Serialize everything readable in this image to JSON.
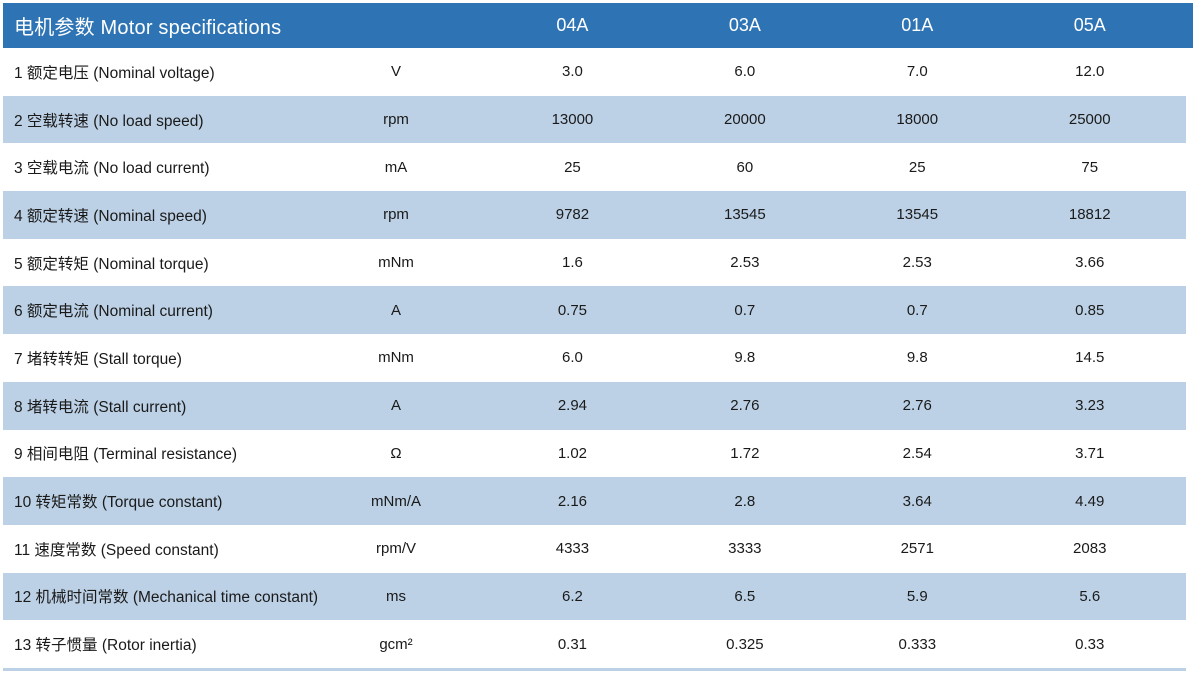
{
  "title": "电机参数 Motor specifications",
  "column_headers": [
    "04A",
    "03A",
    "01A",
    "05A"
  ],
  "rows": [
    {
      "label": "1 额定电压 (Nominal voltage)",
      "unit": "V",
      "values": [
        "3.0",
        "6.0",
        "7.0",
        "12.0"
      ]
    },
    {
      "label": "2 空载转速 (No load speed)",
      "unit": "rpm",
      "values": [
        "13000",
        "20000",
        "18000",
        "25000"
      ]
    },
    {
      "label": "3 空载电流 (No load current)",
      "unit": "mA",
      "values": [
        "25",
        "60",
        "25",
        "75"
      ]
    },
    {
      "label": "4 额定转速 (Nominal speed)",
      "unit": "rpm",
      "values": [
        "9782",
        "13545",
        "13545",
        "18812"
      ]
    },
    {
      "label": "5 额定转矩 (Nominal torque)",
      "unit": "mNm",
      "values": [
        "1.6",
        "2.53",
        "2.53",
        "3.66"
      ]
    },
    {
      "label": "6 额定电流 (Nominal current)",
      "unit": "A",
      "values": [
        "0.75",
        "0.7",
        "0.7",
        "0.85"
      ]
    },
    {
      "label": "7 堵转转矩 (Stall torque)",
      "unit": "mNm",
      "values": [
        "6.0",
        "9.8",
        "9.8",
        "14.5"
      ]
    },
    {
      "label": "8 堵转电流 (Stall current)",
      "unit": "A",
      "values": [
        "2.94",
        "2.76",
        "2.76",
        "3.23"
      ]
    },
    {
      "label": "9 相间电阻 (Terminal resistance)",
      "unit": "Ω",
      "values": [
        "1.02",
        "1.72",
        "2.54",
        "3.71"
      ]
    },
    {
      "label": "10 转矩常数 (Torque constant)",
      "unit": "mNm/A",
      "values": [
        "2.16",
        "2.8",
        "3.64",
        "4.49"
      ]
    },
    {
      "label": "11 速度常数 (Speed constant)",
      "unit": "rpm/V",
      "values": [
        "4333",
        "3333",
        "2571",
        "2083"
      ]
    },
    {
      "label": "12 机械时间常数 (Mechanical time constant)",
      "unit": "ms",
      "values": [
        "6.2",
        "6.5",
        "5.9",
        "5.6"
      ]
    },
    {
      "label": "13 转子惯量 (Rotor inertia)",
      "unit": "gcm²",
      "values": [
        "0.31",
        "0.325",
        "0.333",
        "0.33"
      ]
    }
  ],
  "colors": {
    "header_bg": "#2E74B5",
    "stripe_bg": "#BCD1E6",
    "header_text": "#FFFFFF",
    "text": "#1A1A1A",
    "page_bg": "#FFFFFF"
  }
}
